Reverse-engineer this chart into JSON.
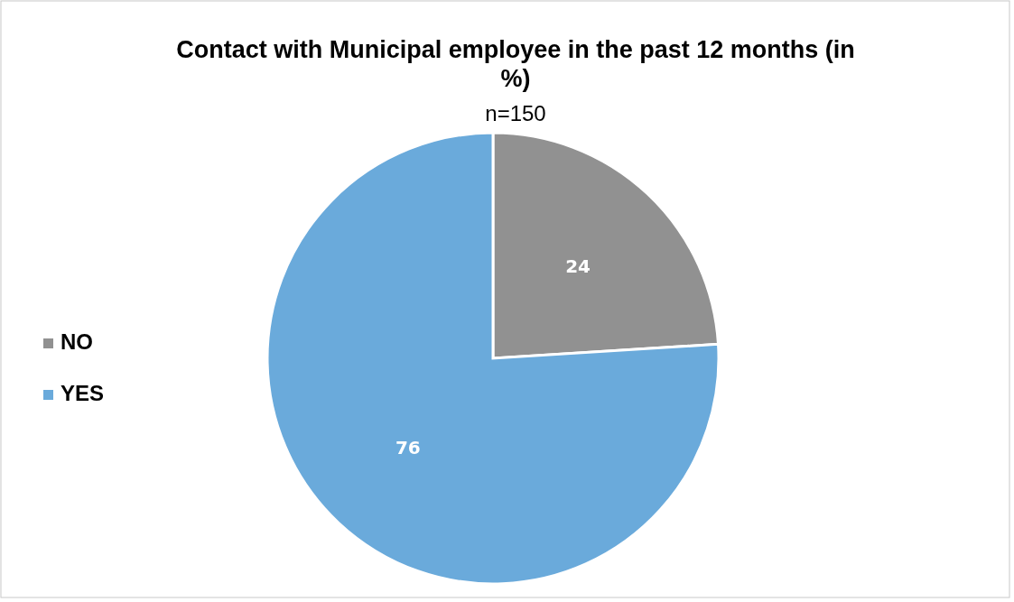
{
  "chart_data": {
    "type": "pie",
    "title": "Contact with Municipal employee in the past 12 months (in %)",
    "subtitle": "n=150",
    "categories": [
      "NO",
      "YES"
    ],
    "values": [
      24,
      76
    ],
    "colors": [
      "#919191",
      "#6aaadb"
    ],
    "data_labels": true,
    "legend": "left"
  }
}
